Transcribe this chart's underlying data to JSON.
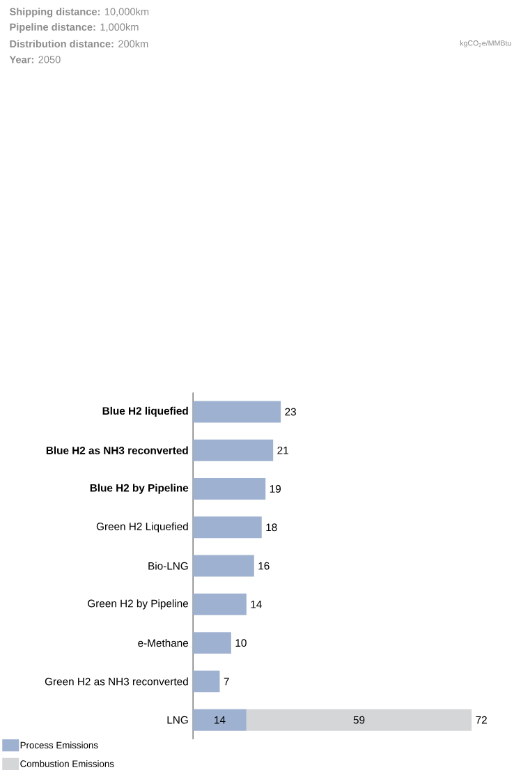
{
  "chart_data": {
    "type": "bar",
    "orientation": "horizontal",
    "stacked": true,
    "data_labels": true,
    "legend": "bottom left",
    "annotations": [
      "kgCO$_{2}$e/MMBtu",
      "**Shipping distance:** 10,000km",
      "**Pipeline distance:** 1,000km",
      "**Distribution distance:** 200km",
      "**Year:** 2050"
    ],
    "categories": [
      "**Blue H2 liquefied**",
      "**Blue H2 as NH3 reconverted**",
      "**Blue H2 by Pipeline**",
      "Green H2 Liquefied",
      "Bio-LNG",
      "Green H2 by Pipeline",
      "e-Methane",
      "Green H2 as NH3 reconverted",
      "LNG"
    ],
    "series": [
      {
        "name": "Process Emissions",
        "color": "#9fb1d0",
        "values": [
          23,
          21,
          19,
          18,
          16,
          14,
          10,
          7,
          14
        ]
      },
      {
        "name": "Combustion Emissions",
        "color": "#d5d6d8",
        "values": [
          null,
          null,
          null,
          null,
          null,
          null,
          null,
          null,
          59
        ]
      }
    ],
    "totals": [
      null,
      null,
      null,
      null,
      null,
      null,
      null,
      null,
      "72"
    ]
  }
}
